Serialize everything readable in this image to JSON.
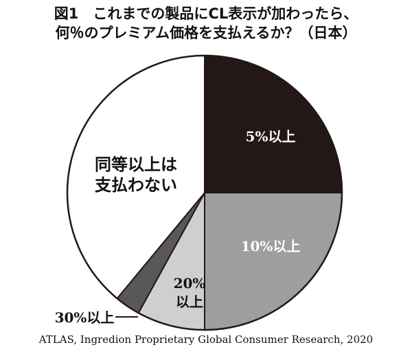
{
  "title": {
    "line1": "図1　これまでの製品にCL表示が加わったら、",
    "line2": "何％のプレミアム価格を支払えるか？（日本）"
  },
  "chart_data": {
    "type": "pie",
    "slices": [
      {
        "label": "5%以上",
        "value": 25,
        "color": "#231815",
        "text_color": "#ffffff"
      },
      {
        "label": "10%以上",
        "value": 25,
        "color": "#9e9e9e",
        "text_color": "#ffffff"
      },
      {
        "label": "20%以上",
        "value": 8,
        "color": "#cfcfcf",
        "text_color": "#111111"
      },
      {
        "label": "30%以上",
        "value": 3,
        "color": "#595757",
        "text_color": "#111111"
      },
      {
        "label": "同等以上は支払わない",
        "value": 39,
        "color": "#ffffff",
        "text_color": "#111111"
      }
    ],
    "start": "12 o'clock, clockwise"
  },
  "source": "ATLAS, Ingredion Proprietary Global Consumer Research, 2020"
}
